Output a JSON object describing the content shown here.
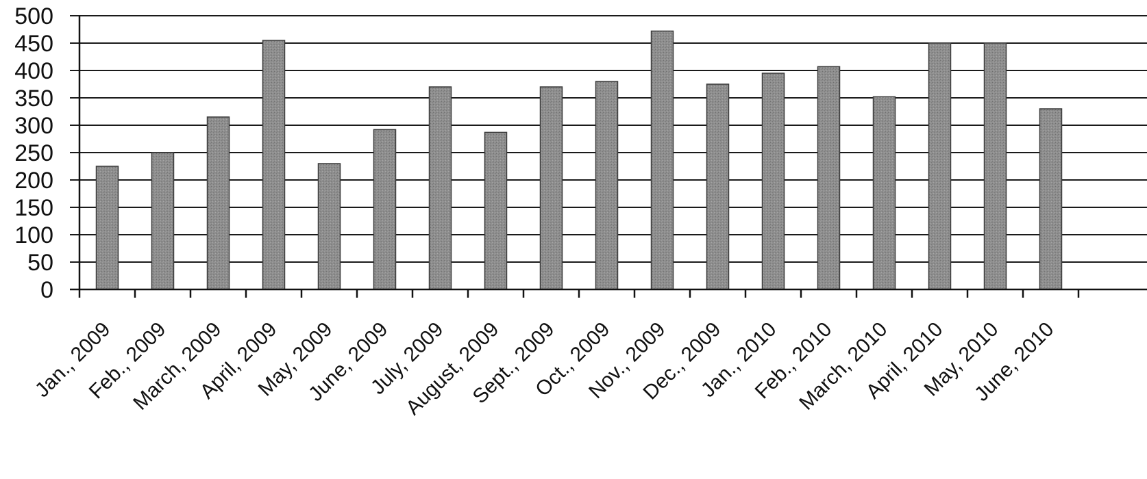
{
  "chart_data": {
    "type": "bar",
    "title": "",
    "xlabel": "",
    "ylabel": "",
    "categories": [
      "Jan., 2009",
      "Feb., 2009",
      "March, 2009",
      "April, 2009",
      "May, 2009",
      "June, 2009",
      "July, 2009",
      "August, 2009",
      "Sept., 2009",
      "Oct., 2009",
      "Nov., 2009",
      "Dec., 2009",
      "Jan., 2010",
      "Feb., 2010",
      "March, 2010",
      "April, 2010",
      "May, 2010",
      "June, 2010"
    ],
    "values": [
      225,
      250,
      315,
      455,
      230,
      292,
      370,
      287,
      370,
      380,
      472,
      375,
      395,
      407,
      352,
      450,
      450,
      330
    ],
    "ylim": [
      0,
      500
    ],
    "yticks": [
      "0",
      "50",
      "100",
      "150",
      "200",
      "250",
      "300",
      "350",
      "400",
      "450",
      "500"
    ],
    "grid": true,
    "legend": "none",
    "bar_color": "#8c8c8c",
    "grid_color": "#1a1a1a"
  }
}
